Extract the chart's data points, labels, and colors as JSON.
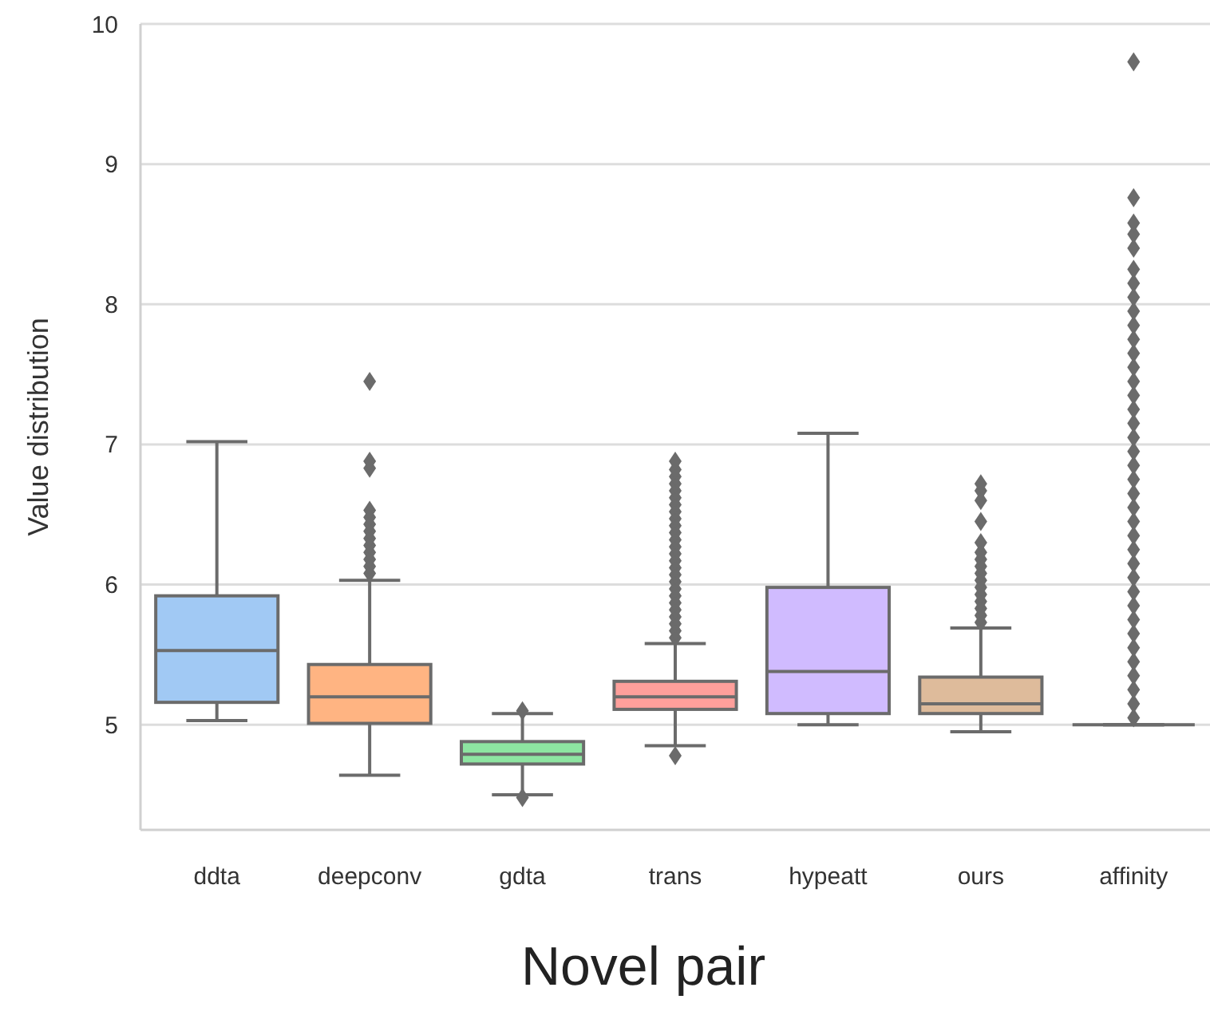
{
  "chart_data": {
    "type": "box",
    "xlabel": "Novel pair",
    "ylabel": "Value distribution",
    "categories": [
      "ddta",
      "deepconv",
      "gdta",
      "trans",
      "hypeatt",
      "ours",
      "affinity"
    ],
    "colors": [
      "#a1c9f4",
      "#ffb482",
      "#8de5a1",
      "#ff9f9b",
      "#d0bbff",
      "#debb9b",
      "#6b6b6b"
    ],
    "boxes": [
      {
        "low": 5.03,
        "q1": 5.16,
        "median": 5.53,
        "q3": 5.92,
        "high": 7.02
      },
      {
        "low": 4.64,
        "q1": 5.01,
        "median": 5.2,
        "q3": 5.43,
        "high": 6.03,
        "outliers": [
          6.08,
          6.13,
          6.18,
          6.23,
          6.28,
          6.33,
          6.38,
          6.43,
          6.48,
          6.53,
          6.83,
          6.88,
          7.45
        ]
      },
      {
        "low": 4.5,
        "q1": 4.72,
        "median": 4.79,
        "q3": 4.88,
        "high": 5.08,
        "outliers": [
          4.48,
          5.1
        ]
      },
      {
        "low": 4.85,
        "q1": 5.11,
        "median": 5.2,
        "q3": 5.31,
        "high": 5.58,
        "outliers": [
          4.78,
          5.62,
          5.67,
          5.72,
          5.77,
          5.82,
          5.87,
          5.92,
          5.97,
          6.02,
          6.07,
          6.12,
          6.17,
          6.22,
          6.27,
          6.32,
          6.37,
          6.42,
          6.47,
          6.52,
          6.57,
          6.62,
          6.67,
          6.72,
          6.77,
          6.82,
          6.88
        ]
      },
      {
        "low": 5.0,
        "q1": 5.08,
        "median": 5.38,
        "q3": 5.98,
        "high": 7.08
      },
      {
        "low": 4.95,
        "q1": 5.08,
        "median": 5.15,
        "q3": 5.34,
        "high": 5.69,
        "outliers": [
          5.73,
          5.78,
          5.83,
          5.88,
          5.93,
          5.98,
          6.03,
          6.08,
          6.13,
          6.18,
          6.23,
          6.3,
          6.45,
          6.6,
          6.67,
          6.72
        ]
      },
      {
        "low": 5.0,
        "q1": 5.0,
        "median": 5.0,
        "q3": 5.0,
        "high": 5.0,
        "outliers": [
          5.05,
          5.15,
          5.25,
          5.35,
          5.45,
          5.55,
          5.65,
          5.75,
          5.85,
          5.95,
          6.05,
          6.15,
          6.25,
          6.35,
          6.45,
          6.55,
          6.65,
          6.75,
          6.85,
          6.95,
          7.05,
          7.15,
          7.25,
          7.35,
          7.45,
          7.55,
          7.65,
          7.75,
          7.85,
          7.95,
          8.05,
          8.15,
          8.25,
          8.4,
          8.5,
          8.58,
          8.76,
          9.73
        ]
      }
    ],
    "ylim": [
      4.25,
      10
    ],
    "yticks": [
      5,
      6,
      7,
      8,
      9,
      10
    ],
    "grid": "y",
    "marker": "diamond"
  }
}
